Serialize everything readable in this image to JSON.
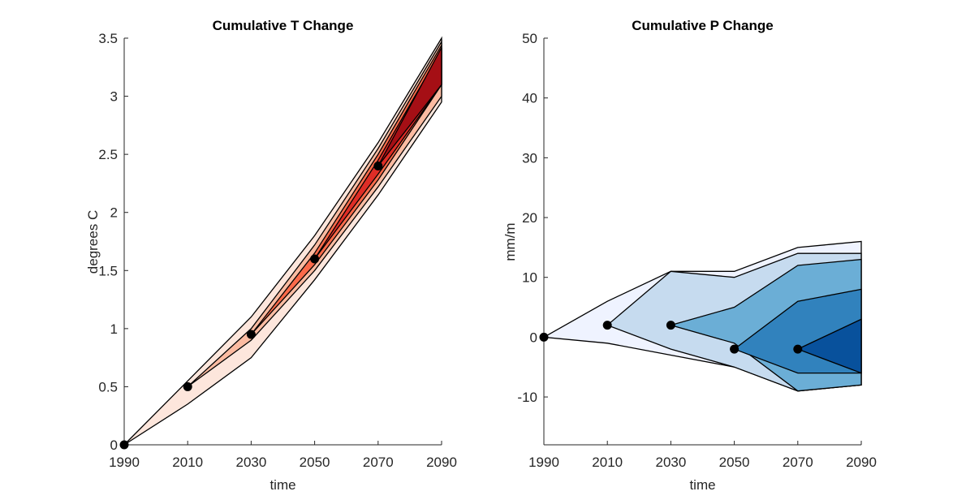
{
  "chart_data": [
    {
      "type": "area",
      "title": "Cumulative T Change",
      "xlabel": "time",
      "ylabel": "degrees C",
      "xlim": [
        1990,
        2090
      ],
      "ylim": [
        0,
        3.5
      ],
      "x_ticks": [
        1990,
        2010,
        2030,
        2050,
        2070,
        2090
      ],
      "y_ticks": [
        0,
        0.5,
        1,
        1.5,
        2,
        2.5,
        3,
        3.5
      ],
      "y_tick_labels": [
        "0",
        "0.5",
        "1",
        "1.5",
        "2",
        "2.5",
        "3",
        "3.5"
      ],
      "grid": false,
      "bands": [
        {
          "color": "#fde6dc",
          "x": [
            1990,
            2010,
            2030,
            2050,
            2070,
            2090
          ],
          "lower": [
            0,
            0.35,
            0.75,
            1.42,
            2.15,
            2.95
          ],
          "upper": [
            0,
            0.55,
            1.1,
            1.8,
            2.6,
            3.5
          ]
        },
        {
          "color": "#fcbba1",
          "x": [
            2010,
            2030,
            2050,
            2070,
            2090
          ],
          "lower": [
            0.5,
            0.9,
            1.5,
            2.22,
            3.0
          ],
          "upper": [
            0.5,
            1.0,
            1.72,
            2.55,
            3.47
          ]
        },
        {
          "color": "#fb6a4a",
          "x": [
            2030,
            2050,
            2070,
            2090
          ],
          "lower": [
            0.95,
            1.55,
            2.28,
            3.1
          ],
          "upper": [
            0.95,
            1.65,
            2.5,
            3.44
          ]
        },
        {
          "color": "#de2d26",
          "x": [
            2050,
            2070,
            2090
          ],
          "lower": [
            1.6,
            2.33,
            3.1
          ],
          "upper": [
            1.6,
            2.45,
            3.4
          ]
        },
        {
          "color": "#a50f15",
          "x": [
            2070,
            2090
          ],
          "lower": [
            2.4,
            3.1
          ],
          "upper": [
            2.4,
            3.42
          ]
        }
      ],
      "points": {
        "x": [
          1990,
          2010,
          2030,
          2050,
          2070
        ],
        "y": [
          0,
          0.5,
          0.95,
          1.6,
          2.4
        ]
      }
    },
    {
      "type": "area",
      "title": "Cumulative P Change",
      "xlabel": "time",
      "ylabel": "mm/m",
      "xlim": [
        1990,
        2090
      ],
      "ylim": [
        -18,
        50
      ],
      "x_ticks": [
        1990,
        2010,
        2030,
        2050,
        2070,
        2090
      ],
      "y_ticks": [
        -10,
        0,
        10,
        20,
        30,
        40,
        50
      ],
      "y_tick_labels": [
        "-10",
        "0",
        "10",
        "20",
        "30",
        "40",
        "50"
      ],
      "grid": false,
      "bands": [
        {
          "color": "#eff3ff",
          "x": [
            1990,
            2010,
            2030,
            2050,
            2070,
            2080,
            2090
          ],
          "lower": [
            0,
            -1,
            -3,
            -5,
            -9,
            -8.5,
            -8
          ],
          "upper": [
            0,
            6,
            11,
            11,
            15,
            15.5,
            16
          ]
        },
        {
          "color": "#c6dbef",
          "x": [
            2010,
            2030,
            2050,
            2070,
            2080,
            2090
          ],
          "lower": [
            2,
            -2,
            -5,
            -9,
            -8.5,
            -8
          ],
          "upper": [
            2,
            11,
            10,
            14,
            14,
            14
          ]
        },
        {
          "color": "#6baed6",
          "x": [
            2030,
            2050,
            2070,
            2090
          ],
          "lower": [
            2,
            -1,
            -9,
            -8
          ],
          "upper": [
            2,
            5,
            12,
            13
          ]
        },
        {
          "color": "#3182bd",
          "x": [
            2050,
            2070,
            2090
          ],
          "lower": [
            -2,
            -6,
            -6
          ],
          "upper": [
            -2,
            6,
            8
          ]
        },
        {
          "color": "#08519c",
          "x": [
            2070,
            2090
          ],
          "lower": [
            -2,
            -6
          ],
          "upper": [
            -2,
            3
          ]
        }
      ],
      "points": {
        "x": [
          1990,
          2010,
          2030,
          2050,
          2070
        ],
        "y": [
          0,
          2,
          2,
          -2,
          -2
        ]
      }
    }
  ]
}
